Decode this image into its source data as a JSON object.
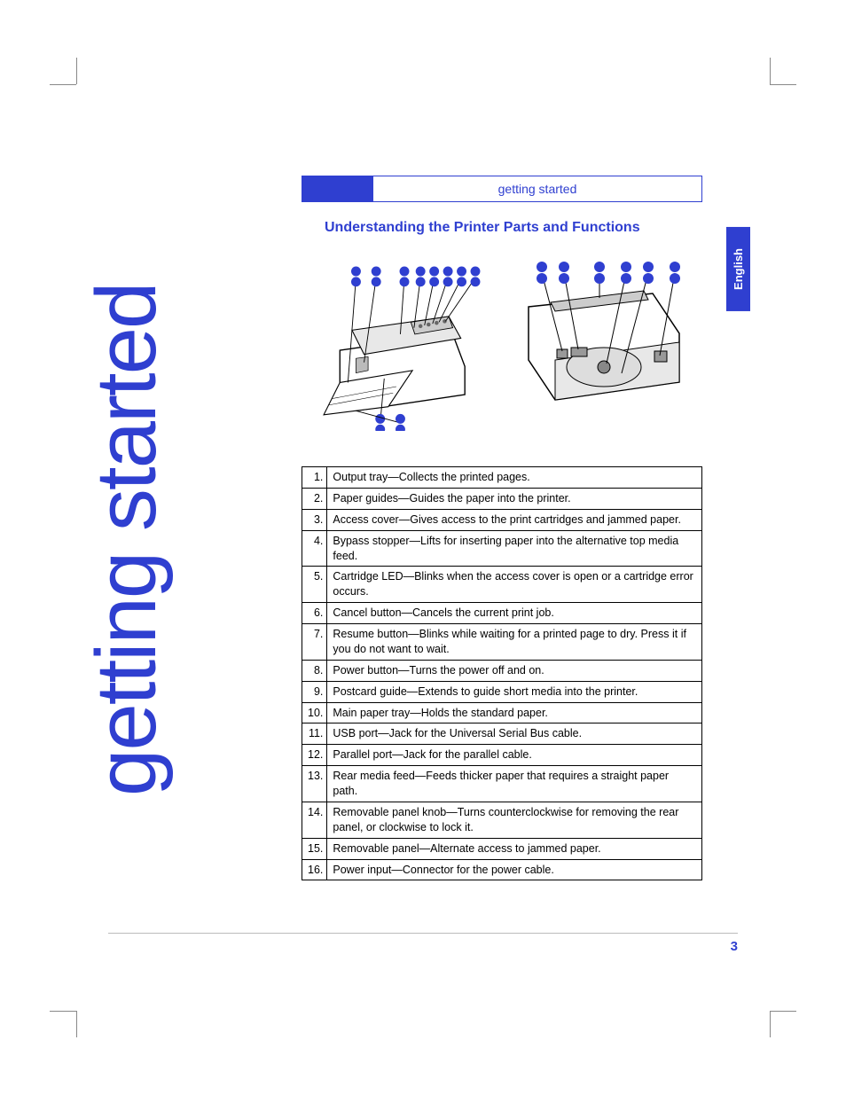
{
  "colors": {
    "accent": "#2f3fd0",
    "text": "#000000",
    "background": "#ffffff",
    "grey": "#bbbbbb"
  },
  "header": {
    "label": "getting started"
  },
  "vertical_title": "getting started",
  "section_title": "Understanding the Printer Parts and Functions",
  "side_tab": "English",
  "page_number": "3",
  "parts": [
    {
      "num": "1.",
      "text": "Output tray—Collects the printed pages."
    },
    {
      "num": "2.",
      "text": "Paper guides—Guides the paper into the printer."
    },
    {
      "num": "3.",
      "text": "Access cover—Gives access to the print cartridges and jammed paper."
    },
    {
      "num": "4.",
      "text": "Bypass stopper—Lifts for inserting paper into the alternative top media feed."
    },
    {
      "num": "5.",
      "text": "Cartridge LED—Blinks when the access cover is open or a cartridge error occurs."
    },
    {
      "num": "6.",
      "text": "Cancel button—Cancels the current print job."
    },
    {
      "num": "7.",
      "text": "Resume button—Blinks while waiting for a printed page to dry. Press it if you do not want to wait."
    },
    {
      "num": "8.",
      "text": "Power button—Turns the power off and on."
    },
    {
      "num": "9.",
      "text": "Postcard guide—Extends to guide short media into the printer."
    },
    {
      "num": "10.",
      "text": "Main paper tray—Holds the standard paper."
    },
    {
      "num": "11.",
      "text": "USB port—Jack for the Universal Serial Bus cable."
    },
    {
      "num": "12.",
      "text": "Parallel port—Jack for the parallel cable."
    },
    {
      "num": "13.",
      "text": "Rear media feed—Feeds thicker paper that requires a straight paper path."
    },
    {
      "num": "14.",
      "text": "Removable panel knob—Turns counterclockwise for removing the rear panel, or clockwise to lock it."
    },
    {
      "num": "15.",
      "text": "Removable panel—Alternate access to jammed paper."
    },
    {
      "num": "16.",
      "text": "Power input—Connector for the power cable."
    }
  ],
  "illustration": {
    "dot_color": "#2f3fd0",
    "line_color": "#000000",
    "front_callouts": [
      1,
      2,
      3,
      4,
      5,
      6,
      7,
      8,
      9,
      10
    ],
    "rear_callouts": [
      11,
      12,
      13,
      14,
      15,
      16
    ]
  }
}
